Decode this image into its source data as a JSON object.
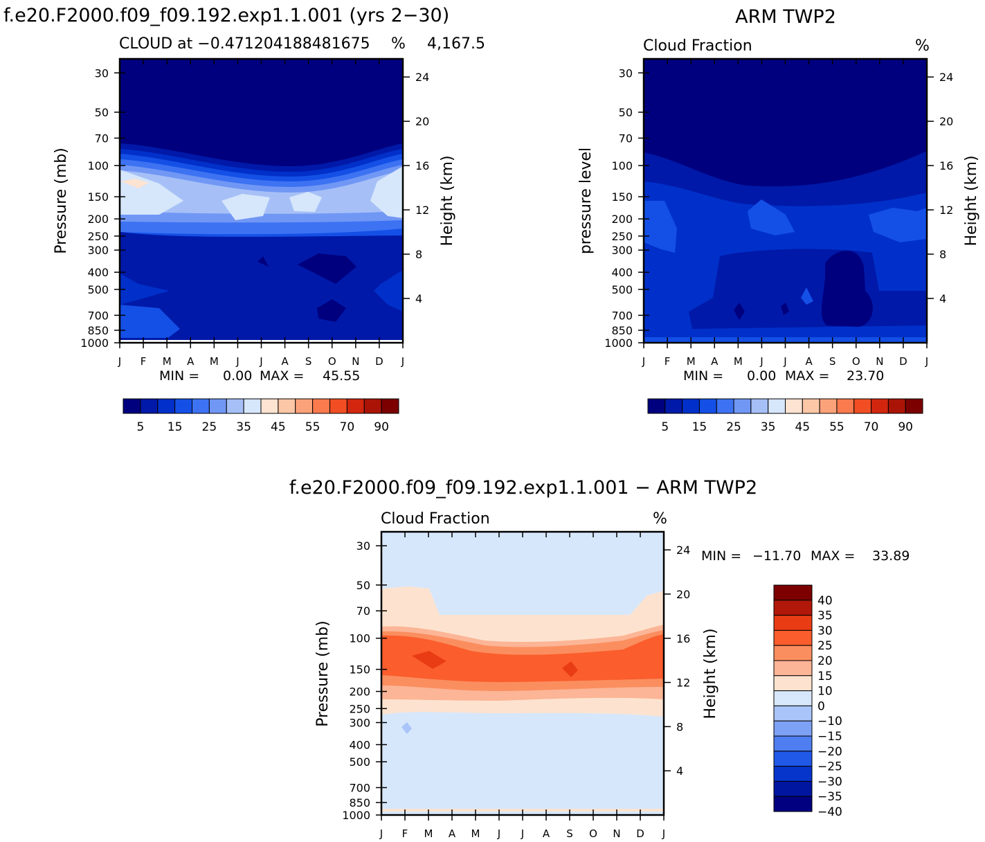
{
  "chart_data": [
    {
      "id": "model",
      "type": "heatmap",
      "main_title": "f.e20.F2000.f09_f09.192.exp1.1.001 (yrs 2−30)",
      "left_title": "CLOUD at −0.471204188481675",
      "right_title": "%",
      "right_title_extra": "4,167.5",
      "ylabel": "Pressure (mb)",
      "ylabel_right": "Height (km)",
      "months": [
        "J",
        "F",
        "M",
        "A",
        "M",
        "J",
        "J",
        "A",
        "S",
        "O",
        "N",
        "D",
        "J"
      ],
      "pressure_ticks": [
        30,
        50,
        70,
        100,
        150,
        200,
        250,
        300,
        400,
        500,
        700,
        850,
        1000
      ],
      "height_ticks": [
        24,
        20,
        16,
        12,
        8,
        4
      ],
      "ylim": [
        1000,
        25
      ],
      "min_label": "MIN =",
      "min_value": "0.00",
      "max_label": "MAX =",
      "max_value": "45.55",
      "colorbar_labels": [
        "5",
        "15",
        "25",
        "35",
        "45",
        "55",
        "70",
        "90"
      ],
      "profile": {
        "levels": [
          30,
          50,
          70,
          100,
          150,
          200,
          250,
          300,
          400,
          500,
          700,
          850,
          1000
        ],
        "values": [
          0,
          0,
          0.8,
          18,
          34,
          26,
          14,
          8,
          3,
          4,
          3,
          2,
          1
        ]
      }
    },
    {
      "id": "obs",
      "type": "heatmap",
      "main_title": "ARM TWP2",
      "left_title": "Cloud Fraction",
      "right_title": "%",
      "ylabel": "pressure level",
      "ylabel_right": "Height (km)",
      "months": [
        "J",
        "F",
        "M",
        "A",
        "M",
        "J",
        "J",
        "A",
        "S",
        "O",
        "N",
        "D",
        "J"
      ],
      "pressure_ticks": [
        30,
        50,
        70,
        100,
        150,
        200,
        250,
        300,
        400,
        500,
        700,
        850,
        1000
      ],
      "height_ticks": [
        24,
        20,
        16,
        12,
        8,
        4
      ],
      "ylim": [
        1000,
        25
      ],
      "min_label": "MIN =",
      "min_value": "0.00",
      "max_label": "MAX =",
      "max_value": "23.70",
      "colorbar_labels": [
        "5",
        "15",
        "25",
        "35",
        "45",
        "55",
        "70",
        "90"
      ],
      "profile": {
        "levels": [
          30,
          50,
          70,
          100,
          150,
          200,
          250,
          300,
          400,
          500,
          700,
          850,
          1000
        ],
        "values": [
          0.5,
          0.5,
          0.5,
          6,
          12,
          14,
          13,
          11,
          9,
          8,
          7,
          9,
          16
        ]
      }
    },
    {
      "id": "diff",
      "type": "heatmap",
      "main_title": "f.e20.F2000.f09_f09.192.exp1.1.001 − ARM TWP2",
      "left_title": "Cloud Fraction",
      "right_title": "%",
      "ylabel": "Pressure (mb)",
      "ylabel_right": "Height (km)",
      "months": [
        "J",
        "F",
        "M",
        "A",
        "M",
        "J",
        "J",
        "A",
        "S",
        "O",
        "N",
        "D",
        "J"
      ],
      "pressure_ticks": [
        30,
        50,
        70,
        100,
        150,
        200,
        250,
        300,
        400,
        500,
        700,
        850,
        1000
      ],
      "height_ticks": [
        24,
        20,
        16,
        12,
        8,
        4
      ],
      "ylim": [
        1000,
        25
      ],
      "min_label": "MIN =",
      "min_value": "−11.70",
      "max_label": "MAX =",
      "max_value": "33.89",
      "colorbar_labels": [
        "40",
        "35",
        "30",
        "25",
        "20",
        "15",
        "10",
        "0",
        "−10",
        "−15",
        "−20",
        "−25",
        "−30",
        "−35",
        "−40"
      ],
      "profile": {
        "levels": [
          30,
          50,
          70,
          100,
          150,
          200,
          250,
          300,
          400,
          500,
          700,
          850,
          1000
        ],
        "values": [
          -2,
          -2,
          2,
          16,
          22,
          12,
          6,
          -3,
          -3,
          -2,
          -2,
          -4,
          -8
        ]
      }
    }
  ],
  "palettes": {
    "seq": [
      "#00007f",
      "#0019a8",
      "#0030c9",
      "#1450e6",
      "#3d72f2",
      "#7197f5",
      "#a6c0f7",
      "#d6e6fb",
      "#fde3d1",
      "#fcc7a7",
      "#fca27a",
      "#fb7a4e",
      "#f14e24",
      "#d2260f",
      "#aa1406",
      "#7c0000"
    ],
    "div_top": [
      "#7c0000",
      "#b11809",
      "#e93c14",
      "#fb5d2c",
      "#fb8e5f",
      "#fcb596",
      "#fde3cf",
      "#d7e7fb",
      "#a9c4f8",
      "#7da1f5",
      "#4e7ef0",
      "#2059e8",
      "#0635cb",
      "#0015a0",
      "#000080"
    ]
  }
}
